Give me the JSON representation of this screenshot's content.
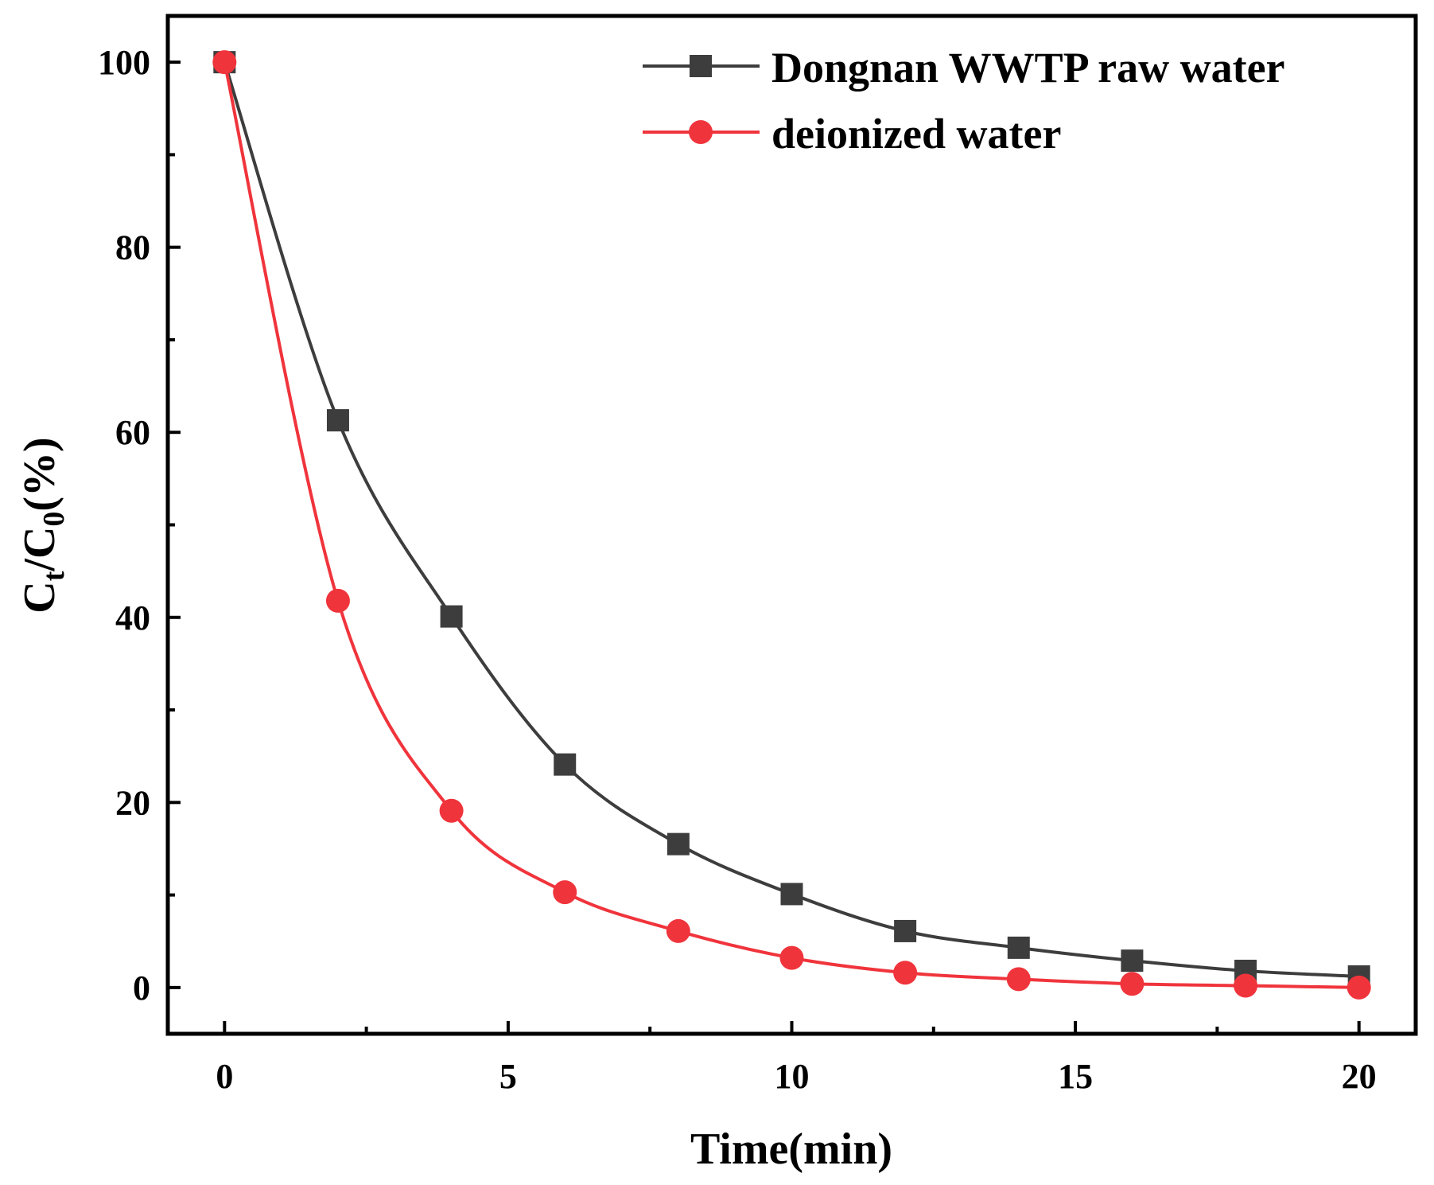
{
  "chart_data": {
    "type": "line",
    "title": "",
    "xlabel": "Time(min)",
    "ylabel": {
      "main": "C",
      "sub1": "t",
      "mid": "/C",
      "sub2": "0",
      "tail": "(%)"
    },
    "xlim": [
      -1,
      21
    ],
    "ylim": [
      -5,
      105
    ],
    "xticks": [
      0,
      5,
      10,
      15,
      20
    ],
    "yticks": [
      0,
      20,
      40,
      60,
      80,
      100
    ],
    "legend_position": "top-right",
    "series": [
      {
        "name": "Dongnan WWTP raw water",
        "color": "#3d3d3d",
        "marker": "square",
        "x": [
          0,
          2,
          4,
          6,
          8,
          10,
          12,
          14,
          16,
          18,
          20
        ],
        "values": [
          100,
          61.3,
          40.1,
          24.1,
          15.5,
          10.1,
          6.1,
          4.3,
          2.9,
          1.8,
          1.2
        ]
      },
      {
        "name": "deionized water",
        "color": "#f0343c",
        "marker": "circle",
        "x": [
          0,
          2,
          4,
          6,
          8,
          10,
          12,
          14,
          16,
          18,
          20
        ],
        "values": [
          100,
          41.8,
          19.1,
          10.3,
          6.1,
          3.2,
          1.6,
          0.9,
          0.4,
          0.2,
          0.0
        ]
      }
    ]
  }
}
